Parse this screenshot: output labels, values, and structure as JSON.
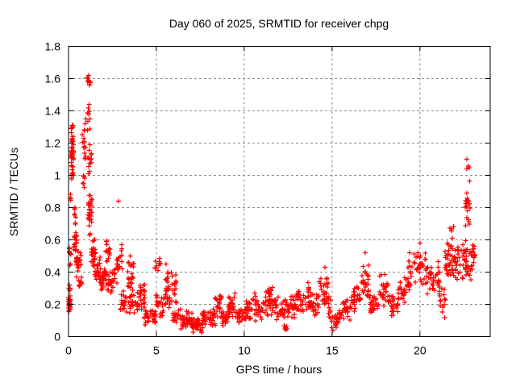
{
  "window": {
    "background": "#ffffff"
  },
  "chart_data": {
    "type": "scatter",
    "title": "Day 060 of 2025, SRMTID for receiver chpg",
    "xlabel": "GPS time / hours",
    "ylabel": "SRMTID / TECUs",
    "xlim": [
      0,
      24
    ],
    "ylim": [
      0,
      1.8
    ],
    "xticks": [
      0,
      5,
      10,
      15,
      20
    ],
    "xtick_labels": [
      "0",
      "5",
      "10",
      "15",
      "20"
    ],
    "yticks": [
      0,
      0.2,
      0.4,
      0.6,
      0.8,
      1.0,
      1.2,
      1.4,
      1.6,
      1.8
    ],
    "ytick_labels": [
      "0",
      "0.2",
      "0.4",
      "0.6",
      "0.8",
      "1",
      "1.2",
      "1.4",
      "1.6",
      "1.8"
    ],
    "grid": true,
    "grid_style": "dotted",
    "grid_color": "#8a8a8a",
    "border_color": "#000000",
    "marker": "plus",
    "marker_color": "#ff0000",
    "series_name": "SRMTID",
    "cluster_format": "[x_start_hours, x_end_hours, y_min_TECUs, y_max_TECUs, n_points] — statistical summary of the dense + scatter",
    "clusters": [
      [
        0.0,
        0.12,
        0.14,
        0.26,
        32
      ],
      [
        0.02,
        0.1,
        0.26,
        0.34,
        6
      ],
      [
        0.04,
        0.15,
        0.36,
        0.63,
        9
      ],
      [
        0.08,
        0.14,
        0.78,
        0.96,
        5
      ],
      [
        0.13,
        0.3,
        1.04,
        1.26,
        34
      ],
      [
        0.14,
        0.28,
        1.26,
        1.33,
        6
      ],
      [
        0.17,
        0.3,
        0.94,
        1.04,
        7
      ],
      [
        0.25,
        0.42,
        0.6,
        0.86,
        8
      ],
      [
        0.28,
        0.48,
        0.52,
        0.66,
        16
      ],
      [
        0.42,
        0.72,
        0.36,
        0.56,
        26
      ],
      [
        0.55,
        0.78,
        0.28,
        0.4,
        10
      ],
      [
        0.78,
        0.98,
        1.02,
        1.36,
        16
      ],
      [
        0.8,
        0.95,
        0.9,
        1.02,
        6
      ],
      [
        1.05,
        1.28,
        1.52,
        1.63,
        9
      ],
      [
        1.08,
        1.25,
        1.18,
        1.52,
        10
      ],
      [
        1.1,
        1.3,
        0.95,
        1.2,
        13
      ],
      [
        1.1,
        1.35,
        0.6,
        0.95,
        28
      ],
      [
        1.28,
        1.55,
        0.42,
        0.62,
        22
      ],
      [
        1.45,
        1.8,
        0.32,
        0.52,
        26
      ],
      [
        1.8,
        2.15,
        0.25,
        0.45,
        28
      ],
      [
        2.1,
        2.4,
        0.42,
        0.6,
        16
      ],
      [
        2.2,
        2.6,
        0.24,
        0.42,
        20
      ],
      [
        2.55,
        2.8,
        0.3,
        0.5,
        12
      ],
      [
        2.78,
        3.05,
        0.32,
        0.62,
        13
      ],
      [
        2.95,
        3.35,
        0.13,
        0.3,
        22
      ],
      [
        3.35,
        3.75,
        0.2,
        0.52,
        28
      ],
      [
        3.45,
        3.95,
        0.13,
        0.28,
        20
      ],
      [
        3.9,
        4.35,
        0.14,
        0.38,
        24
      ],
      [
        4.3,
        4.95,
        0.06,
        0.2,
        34
      ],
      [
        4.9,
        5.25,
        0.38,
        0.53,
        10
      ],
      [
        4.95,
        5.45,
        0.1,
        0.3,
        24
      ],
      [
        5.4,
        5.8,
        0.12,
        0.38,
        20
      ],
      [
        5.5,
        5.68,
        0.3,
        0.45,
        7
      ],
      [
        5.85,
        6.15,
        0.18,
        0.43,
        16
      ],
      [
        5.9,
        6.4,
        0.08,
        0.18,
        18
      ],
      [
        6.4,
        7.05,
        0.04,
        0.16,
        38
      ],
      [
        7.0,
        7.65,
        0.02,
        0.12,
        42
      ],
      [
        7.6,
        8.35,
        0.04,
        0.18,
        42
      ],
      [
        8.3,
        8.75,
        0.1,
        0.3,
        26
      ],
      [
        8.7,
        9.15,
        0.06,
        0.18,
        24
      ],
      [
        9.1,
        9.55,
        0.1,
        0.28,
        22
      ],
      [
        9.5,
        10.1,
        0.07,
        0.19,
        28
      ],
      [
        10.1,
        11.0,
        0.09,
        0.24,
        42
      ],
      [
        10.45,
        10.75,
        0.2,
        0.28,
        8
      ],
      [
        11.0,
        12.0,
        0.1,
        0.28,
        46
      ],
      [
        11.35,
        11.65,
        0.24,
        0.32,
        8
      ],
      [
        12.0,
        12.6,
        0.07,
        0.24,
        28
      ],
      [
        12.25,
        12.45,
        0.02,
        0.1,
        8
      ],
      [
        12.6,
        13.4,
        0.1,
        0.28,
        38
      ],
      [
        12.95,
        13.15,
        0.24,
        0.31,
        6
      ],
      [
        13.4,
        14.25,
        0.12,
        0.3,
        38
      ],
      [
        13.55,
        13.75,
        0.26,
        0.34,
        6
      ],
      [
        14.25,
        14.8,
        0.16,
        0.42,
        28
      ],
      [
        14.75,
        14.95,
        0.08,
        0.3,
        10
      ],
      [
        14.95,
        15.45,
        0.03,
        0.14,
        20
      ],
      [
        15.4,
        16.1,
        0.09,
        0.24,
        32
      ],
      [
        16.1,
        16.65,
        0.14,
        0.33,
        28
      ],
      [
        16.65,
        17.1,
        0.2,
        0.46,
        26
      ],
      [
        17.1,
        17.65,
        0.1,
        0.28,
        26
      ],
      [
        17.65,
        18.25,
        0.16,
        0.4,
        28
      ],
      [
        18.25,
        18.75,
        0.12,
        0.3,
        24
      ],
      [
        18.75,
        19.3,
        0.18,
        0.38,
        24
      ],
      [
        19.3,
        19.65,
        0.25,
        0.5,
        16
      ],
      [
        19.65,
        20.35,
        0.28,
        0.56,
        32
      ],
      [
        20.35,
        21.15,
        0.24,
        0.48,
        36
      ],
      [
        21.1,
        21.45,
        0.1,
        0.35,
        13
      ],
      [
        21.4,
        22.25,
        0.3,
        0.62,
        55
      ],
      [
        21.7,
        22.0,
        0.62,
        0.7,
        4
      ],
      [
        22.25,
        22.6,
        0.35,
        0.6,
        18
      ],
      [
        22.55,
        22.85,
        0.6,
        1.08,
        16
      ],
      [
        22.6,
        22.75,
        0.8,
        0.88,
        8
      ],
      [
        22.6,
        23.15,
        0.32,
        0.6,
        28
      ],
      [
        23.0,
        23.15,
        0.45,
        0.6,
        6
      ]
    ],
    "outlier_points": [
      [
        2.84,
        0.84
      ],
      [
        22.68,
        1.1
      ],
      [
        22.66,
        1.04
      ],
      [
        20.0,
        0.58
      ],
      [
        19.42,
        0.52
      ],
      [
        16.88,
        0.52
      ],
      [
        14.6,
        0.43
      ],
      [
        5.55,
        0.45
      ],
      [
        1.15,
        1.62
      ],
      [
        0.2,
        1.31
      ]
    ]
  }
}
